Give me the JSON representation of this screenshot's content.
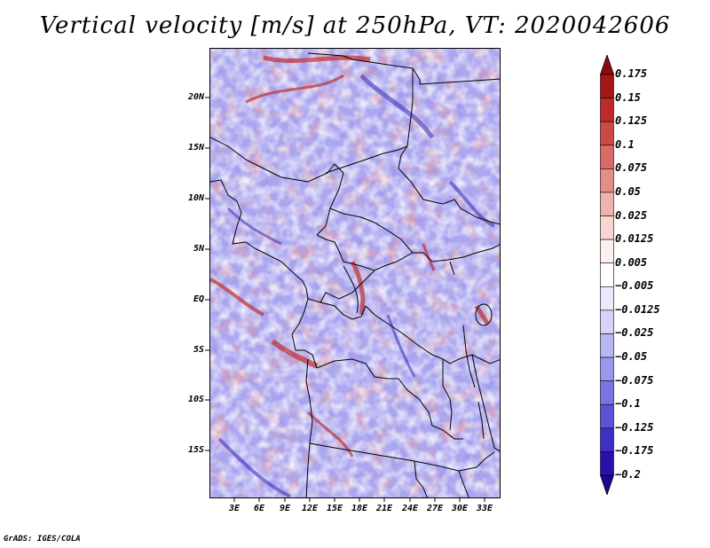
{
  "title": "Vertical velocity [m/s] at 250hPa, VT: 2020042606",
  "credit": "GrADS: IGES/COLA",
  "map": {
    "lat_labels": [
      "20N",
      "15N",
      "10N",
      "5N",
      "EQ",
      "5S",
      "10S",
      "15S"
    ],
    "lon_labels": [
      "3E",
      "6E",
      "9E",
      "12E",
      "15E",
      "18E",
      "21E",
      "24E",
      "27E",
      "30E",
      "33E"
    ]
  },
  "colorbar": {
    "labels": [
      "0.175",
      "0.15",
      "0.125",
      "0.1",
      "0.075",
      "0.05",
      "0.025",
      "0.0125",
      "0.005",
      "−0.005",
      "−0.0125",
      "−0.025",
      "−0.05",
      "−0.075",
      "−0.1",
      "−0.125",
      "−0.175",
      "−0.2"
    ],
    "colors": [
      "#8b0c0c",
      "#a51616",
      "#bd2a28",
      "#cc4a46",
      "#d96b66",
      "#e48e89",
      "#efb3ae",
      "#f7d6d3",
      "#fcefee",
      "#ffffff",
      "#ebeafd",
      "#d6d4fb",
      "#bab6f5",
      "#9c96ee",
      "#7d74e3",
      "#5d51d6",
      "#3f2fc4",
      "#2712ad",
      "#1a0892"
    ]
  }
}
